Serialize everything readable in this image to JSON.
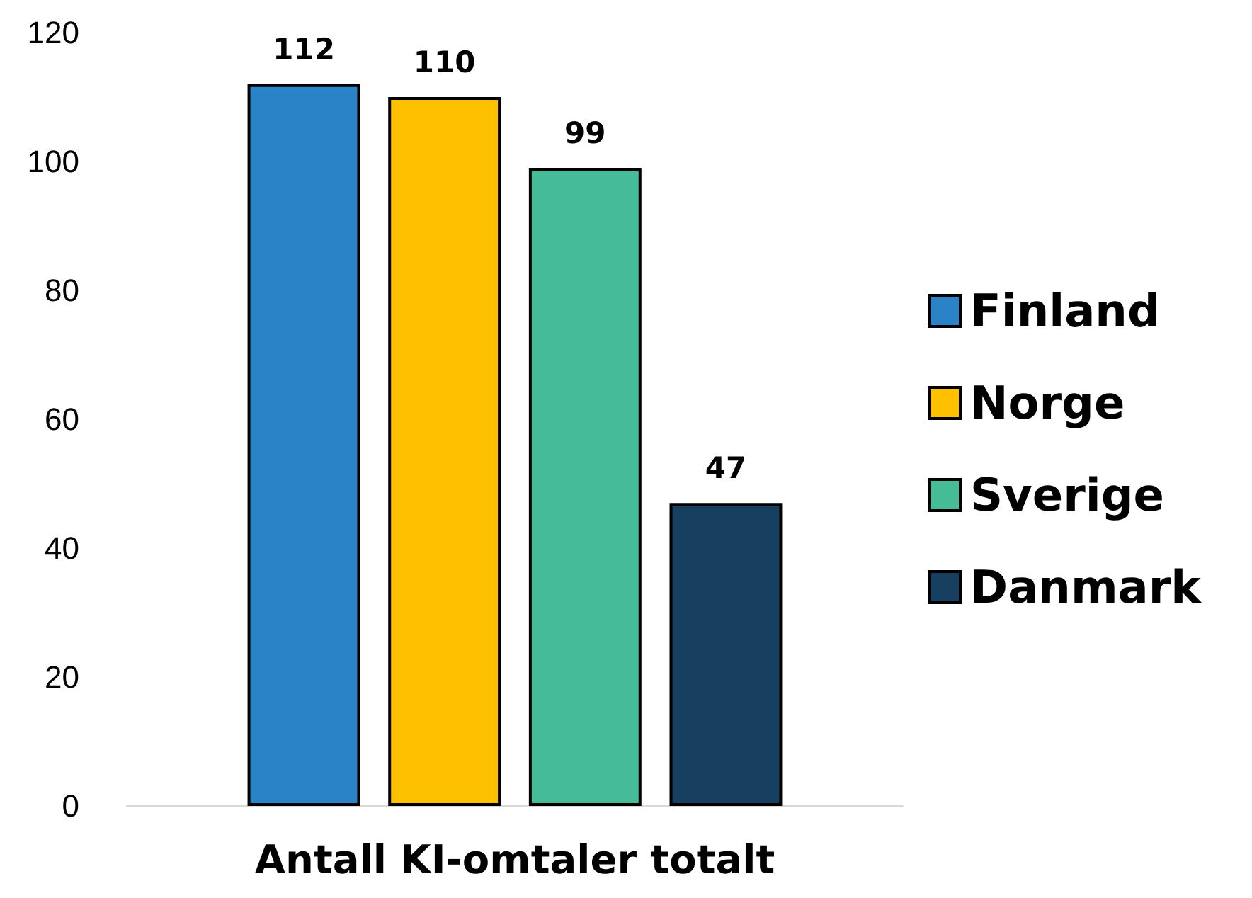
{
  "chart_data": {
    "type": "bar",
    "categories": [
      "Antall KI-omtaler totalt"
    ],
    "series": [
      {
        "name": "Finland",
        "color": "#2a82c7",
        "values": [
          112
        ]
      },
      {
        "name": "Norge",
        "color": "#ffc000",
        "values": [
          110
        ]
      },
      {
        "name": "Sverige",
        "color": "#45bb98",
        "values": [
          99
        ]
      },
      {
        "name": "Danmark",
        "color": "#173f5f",
        "values": [
          47
        ]
      }
    ],
    "ylim": [
      0,
      120
    ],
    "yticks": [
      0,
      20,
      40,
      60,
      80,
      100,
      120
    ],
    "grid": false,
    "legend": "right",
    "data_labels": true
  }
}
